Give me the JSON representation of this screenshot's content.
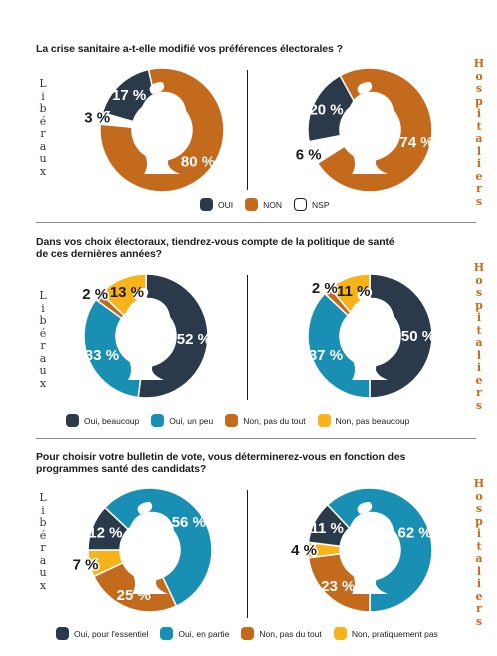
{
  "labels": {
    "left_group": "Libéraux",
    "right_group": "Hospitaliers"
  },
  "colors": {
    "navy": "#2b3a4a",
    "orange": "#c36a1c",
    "teal": "#1a8fb4",
    "yellow": "#f8b31a",
    "white": "#ffffff"
  },
  "chart_data": [
    {
      "type": "pie",
      "title": "La crise sanitaire a-t-elle modifié vos préférences électorales ?",
      "legend": [
        {
          "name": "OUI",
          "color": "#2b3a4a"
        },
        {
          "name": "NON",
          "color": "#c36a1c"
        },
        {
          "name": "NSP",
          "color": "#ffffff"
        }
      ],
      "groups": [
        {
          "name": "Libéraux",
          "values": [
            17,
            80,
            3
          ],
          "labels": [
            "17 %",
            "80 %",
            "3 %"
          ]
        },
        {
          "name": "Hospitaliers",
          "values": [
            20,
            74,
            6
          ],
          "labels": [
            "20 %",
            "74 %",
            "6 %"
          ]
        }
      ]
    },
    {
      "type": "pie",
      "title": "Dans vos choix électoraux, tiendrez-vous compte de la politique de santé de ces dernières années?",
      "legend": [
        {
          "name": "Oui, beaucoup",
          "color": "#2b3a4a"
        },
        {
          "name": "Oui, un peu",
          "color": "#1a8fb4"
        },
        {
          "name": "Non, pas du tout",
          "color": "#c36a1c"
        },
        {
          "name": "Non, pas beaucoup",
          "color": "#f8b31a"
        }
      ],
      "groups": [
        {
          "name": "Libéraux",
          "values": [
            52,
            33,
            2,
            13
          ],
          "labels": [
            "52 %",
            "33 %",
            "2 %",
            "13 %"
          ]
        },
        {
          "name": "Hospitaliers",
          "values": [
            50,
            37,
            2,
            11
          ],
          "labels": [
            "50 %",
            "37 %",
            "2 %",
            "11 %"
          ]
        }
      ]
    },
    {
      "type": "pie",
      "title": "Pour choisir votre bulletin de vote, vous déterminerez-vous en fonction des programmes santé des candidats?",
      "legend": [
        {
          "name": "Oui, pour l'essentiel",
          "color": "#2b3a4a"
        },
        {
          "name": "Oui, en partie",
          "color": "#1a8fb4"
        },
        {
          "name": "Non, pas du tout",
          "color": "#c36a1c"
        },
        {
          "name": "Non, pratiquement pas",
          "color": "#f8b31a"
        }
      ],
      "groups": [
        {
          "name": "Libéraux",
          "values": [
            12,
            56,
            25,
            7
          ],
          "labels": [
            "12 %",
            "56 %",
            "25 %",
            "7 %"
          ]
        },
        {
          "name": "Hospitaliers",
          "values": [
            11,
            62,
            23,
            4
          ],
          "labels": [
            "11 %",
            "62 %",
            "23 %",
            "4 %"
          ]
        }
      ]
    }
  ]
}
